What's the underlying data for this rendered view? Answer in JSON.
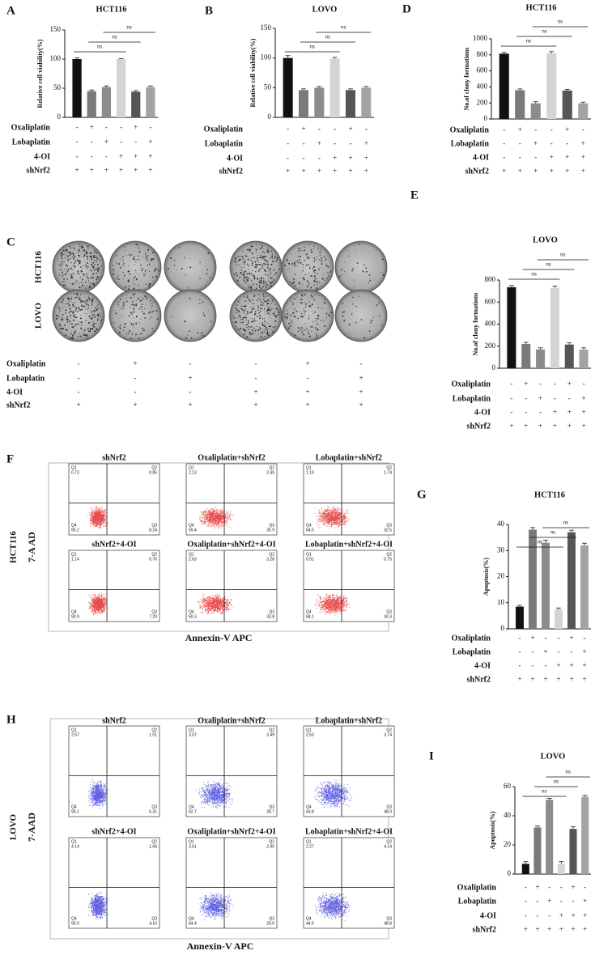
{
  "chart_data": [
    {
      "type": "bar",
      "panel": "A",
      "title": "HCT116",
      "y_label": "Relative cell viability(%)",
      "values": [
        100,
        45,
        52,
        100,
        44,
        52
      ],
      "errors": [
        2,
        2,
        2,
        1,
        2,
        2
      ],
      "colors": [
        "#111111",
        "#7a7a7a",
        "#8c8c8c",
        "#d4d4d4",
        "#555555",
        "#a3a3a3"
      ],
      "ylim": [
        0,
        150
      ],
      "yticks": [
        0,
        50,
        100,
        150
      ],
      "annotations": [
        "ns",
        "ns",
        "ns"
      ],
      "treatments": [
        {
          "name": "Oxaliplatin",
          "signs": [
            "-",
            "+",
            "-",
            "-",
            "+",
            "-"
          ]
        },
        {
          "name": "Lobaplatin",
          "signs": [
            "-",
            "-",
            "+",
            "-",
            "-",
            "+"
          ]
        },
        {
          "name": "4-OI",
          "signs": [
            "-",
            "-",
            "-",
            "+",
            "+",
            "+"
          ]
        },
        {
          "name": "shNrf2",
          "signs": [
            "+",
            "+",
            "+",
            "+",
            "+",
            "+"
          ]
        }
      ]
    },
    {
      "type": "bar",
      "panel": "B",
      "title": "LOVO",
      "y_label": "Relative cell viability(%)",
      "values": [
        100,
        46,
        50,
        99,
        46,
        50
      ],
      "errors": [
        4,
        2,
        2,
        2,
        2,
        2
      ],
      "colors": [
        "#111111",
        "#7a7a7a",
        "#8c8c8c",
        "#d4d4d4",
        "#555555",
        "#a3a3a3"
      ],
      "ylim": [
        0,
        150
      ],
      "yticks": [
        0,
        50,
        100,
        150
      ],
      "annotations": [
        "ns",
        "ns",
        "ns"
      ],
      "treatments": [
        {
          "name": "Oxaliplatin",
          "signs": [
            "-",
            "+",
            "-",
            "-",
            "+",
            "-"
          ]
        },
        {
          "name": "Lobaplatin",
          "signs": [
            "-",
            "-",
            "+",
            "-",
            "-",
            "+"
          ]
        },
        {
          "name": "4-OI",
          "signs": [
            "-",
            "-",
            "-",
            "+",
            "+",
            "+"
          ]
        },
        {
          "name": "shNrf2",
          "signs": [
            "+",
            "+",
            "+",
            "+",
            "+",
            "+"
          ]
        }
      ]
    },
    {
      "type": "bar",
      "panel": "D",
      "title": "HCT116",
      "y_label": "No.of clony formations",
      "values": [
        815,
        360,
        195,
        820,
        355,
        195
      ],
      "errors": [
        15,
        15,
        20,
        20,
        15,
        15
      ],
      "colors": [
        "#111111",
        "#7a7a7a",
        "#8c8c8c",
        "#d4d4d4",
        "#555555",
        "#a3a3a3"
      ],
      "ylim": [
        0,
        1000
      ],
      "yticks": [
        0,
        200,
        400,
        600,
        800,
        1000
      ],
      "annotations": [
        "ns",
        "ns",
        "ns"
      ],
      "treatments": [
        {
          "name": "Oxaliplatin",
          "signs": [
            "-",
            "+",
            "-",
            "-",
            "+",
            "-"
          ]
        },
        {
          "name": "Lobaplatin",
          "signs": [
            "-",
            "-",
            "+",
            "-",
            "-",
            "+"
          ]
        },
        {
          "name": "4-OI",
          "signs": [
            "-",
            "-",
            "-",
            "+",
            "+",
            "+"
          ]
        },
        {
          "name": "shNrf2",
          "signs": [
            "+",
            "+",
            "+",
            "+",
            "+",
            "+"
          ]
        }
      ]
    },
    {
      "type": "bar",
      "panel": "E",
      "title": "LOVO",
      "y_label": "No.of clony formations",
      "values": [
        735,
        220,
        170,
        730,
        215,
        170
      ],
      "errors": [
        15,
        15,
        15,
        15,
        15,
        15
      ],
      "colors": [
        "#111111",
        "#7a7a7a",
        "#8c8c8c",
        "#d4d4d4",
        "#555555",
        "#a3a3a3"
      ],
      "ylim": [
        0,
        800
      ],
      "yticks": [
        0,
        200,
        400,
        600,
        800
      ],
      "annotations": [
        "ns",
        "ns",
        "ns"
      ],
      "treatments": [
        {
          "name": "Oxaliplatin",
          "signs": [
            "-",
            "+",
            "-",
            "-",
            "+",
            "-"
          ]
        },
        {
          "name": "Lobaplatin",
          "signs": [
            "-",
            "-",
            "+",
            "-",
            "-",
            "+"
          ]
        },
        {
          "name": "4-OI",
          "signs": [
            "-",
            "-",
            "-",
            "+",
            "+",
            "+"
          ]
        },
        {
          "name": "shNrf2",
          "signs": [
            "+",
            "+",
            "+",
            "+",
            "+",
            "+"
          ]
        }
      ]
    },
    {
      "type": "bar",
      "panel": "G",
      "title": "HCT116",
      "y_label": "Apoptosis(%)",
      "values": [
        8.5,
        38,
        33,
        7.5,
        37,
        32
      ],
      "errors": [
        0.5,
        0.8,
        1,
        0.5,
        0.8,
        0.8
      ],
      "colors": [
        "#111111",
        "#7a7a7a",
        "#8c8c8c",
        "#d4d4d4",
        "#555555",
        "#a3a3a3"
      ],
      "ylim": [
        0,
        40
      ],
      "yticks": [
        0,
        10,
        20,
        30,
        40
      ],
      "annotations": [
        "ns",
        "ns",
        "ns"
      ],
      "treatments": [
        {
          "name": "Oxaliplatin",
          "signs": [
            "-",
            "+",
            "-",
            "-",
            "+",
            "-"
          ]
        },
        {
          "name": "Lobaplatin",
          "signs": [
            "-",
            "-",
            "+",
            "-",
            "-",
            "+"
          ]
        },
        {
          "name": "4-OI",
          "signs": [
            "-",
            "-",
            "-",
            "+",
            "+",
            "+"
          ]
        },
        {
          "name": "shNrf2",
          "signs": [
            "+",
            "+",
            "+",
            "+",
            "+",
            "+"
          ]
        }
      ]
    },
    {
      "type": "bar",
      "panel": "I",
      "title": "LOVO",
      "y_label": "Apoptosis(%)",
      "values": [
        7,
        32,
        51,
        7,
        31,
        53
      ],
      "errors": [
        1.5,
        1,
        1,
        1.5,
        1.5,
        1
      ],
      "colors": [
        "#111111",
        "#7a7a7a",
        "#8c8c8c",
        "#d4d4d4",
        "#555555",
        "#a3a3a3"
      ],
      "ylim": [
        0,
        60
      ],
      "yticks": [
        0,
        20,
        40,
        60
      ],
      "annotations": [
        "ns",
        "ns",
        "ns"
      ],
      "treatments": [
        {
          "name": "Oxaliplatin",
          "signs": [
            "-",
            "+",
            "-",
            "-",
            "+",
            "-"
          ]
        },
        {
          "name": "Lobaplatin",
          "signs": [
            "-",
            "-",
            "+",
            "-",
            "-",
            "+"
          ]
        },
        {
          "name": "4-OI",
          "signs": [
            "-",
            "-",
            "-",
            "+",
            "+",
            "+"
          ]
        },
        {
          "name": "shNrf2",
          "signs": [
            "+",
            "+",
            "+",
            "+",
            "+",
            "+"
          ]
        }
      ]
    }
  ],
  "colony_panel": {
    "panel": "C",
    "rows": [
      "HCT116",
      "LOVO"
    ],
    "treatments": [
      {
        "name": "Oxaliplatin",
        "signs": [
          "-",
          "+",
          "-",
          "-",
          "+",
          "-"
        ]
      },
      {
        "name": "Lobaplatin",
        "signs": [
          "-",
          "-",
          "+",
          "-",
          "-",
          "+"
        ]
      },
      {
        "name": "4-OI",
        "signs": [
          "-",
          "-",
          "-",
          "+",
          "+",
          "+"
        ]
      },
      {
        "name": "shNrf2",
        "signs": [
          "+",
          "+",
          "+",
          "+",
          "+",
          "+"
        ]
      }
    ]
  },
  "flow_panels": [
    {
      "panel": "F",
      "row_label": "HCT116",
      "y_label": "7-A AD",
      "x_label": "Annexin-V APC",
      "quadrant_names": [
        "Q1",
        "Q2",
        "Q3",
        "Q4"
      ],
      "plots": [
        {
          "title": "shNrf2",
          "quadrants": [
            "0.73",
            "0.85",
            "8.24",
            "90.2"
          ]
        },
        {
          "title": "Oxaliplatin+shNrf2",
          "quadrants": [
            "2.13",
            "2.49",
            "35.9",
            "59.4"
          ]
        },
        {
          "title": "Lobaplatin+shNrf2",
          "quadrants": [
            "1.19",
            "1.74",
            "32.5",
            "64.5"
          ]
        },
        {
          "title": "shNrf2+4-OI",
          "quadrants": [
            "1.14",
            "0.76",
            "7.20",
            "90.9"
          ]
        },
        {
          "title": "Oxaliplatin+shNrf2+4-OI",
          "quadrants": [
            "2.63",
            "3.28",
            "33.8",
            "60.3"
          ]
        },
        {
          "title": "Lobaplatin+shNrf2+4-OI",
          "quadrants": [
            "0.91",
            "0.75",
            "30.3",
            "68.1"
          ]
        }
      ]
    },
    {
      "panel": "H",
      "row_label": "LOVO",
      "y_label": "7-AAD",
      "x_label": "Annexin-V APC",
      "quadrant_names": [
        "Q1",
        "Q2",
        "Q3",
        "Q4"
      ],
      "plots": [
        {
          "title": "shNrf2",
          "quadrants": [
            "2.57",
            "1.01",
            "5.31",
            "90.1"
          ]
        },
        {
          "title": "Oxaliplatin+shNrf2",
          "quadrants": [
            "3.07",
            "3.49",
            "28.7",
            "62.7"
          ]
        },
        {
          "title": "Lobaplatin+shNrf2",
          "quadrants": [
            "2.53",
            "3.74",
            "48.0",
            "43.8"
          ]
        },
        {
          "title": "shNrf2+4-OI",
          "quadrants": [
            "4.14",
            "1.66",
            "4.10",
            "90.0"
          ]
        },
        {
          "title": "Oxaliplatin+shNrf2+4-OI",
          "quadrants": [
            "3.61",
            "2.90",
            "29.0",
            "64.4"
          ]
        },
        {
          "title": "Lobaplatin+shNrf2+4-OI",
          "quadrants": [
            "2.27",
            "4.14",
            "48.8",
            "44.5"
          ]
        }
      ]
    }
  ]
}
